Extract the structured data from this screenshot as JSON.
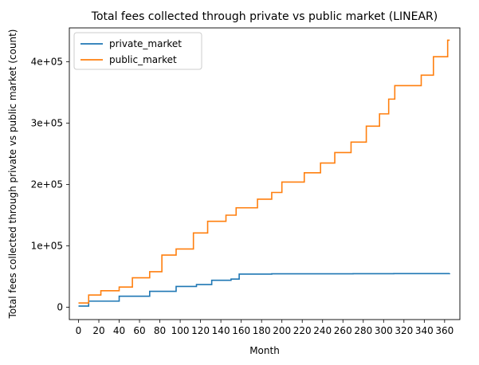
{
  "chart_data": {
    "type": "line",
    "step": true,
    "title": "Total fees collected through private vs public market (LINEAR)",
    "xlabel": "Month",
    "ylabel": "Total fees collected through private vs public market (count)",
    "xlim": [
      -9,
      375
    ],
    "ylim": [
      -20000,
      455000
    ],
    "x_ticks": [
      0,
      20,
      40,
      60,
      80,
      100,
      120,
      140,
      160,
      180,
      200,
      220,
      240,
      260,
      280,
      300,
      320,
      340,
      360
    ],
    "x_tick_labels": [
      "0",
      "20",
      "40",
      "60",
      "80",
      "100",
      "120",
      "140",
      "160",
      "180",
      "200",
      "220",
      "240",
      "260",
      "280",
      "300",
      "320",
      "340",
      "360"
    ],
    "y_ticks": [
      0,
      100000,
      200000,
      300000,
      400000
    ],
    "y_tick_labels": [
      "0",
      "1e+05",
      "2e+05",
      "3e+05",
      "4e+05"
    ],
    "legend_position": "top-left",
    "grid": false,
    "series": [
      {
        "name": "private_market",
        "color": "#1f77b4",
        "x": [
          0,
          10,
          40,
          70,
          96,
          116,
          131,
          150,
          158,
          190,
          230,
          270,
          310,
          365
        ],
        "y": [
          2000,
          10000,
          18000,
          26000,
          34000,
          37000,
          44000,
          46000,
          54000,
          54500,
          54600,
          54700,
          54800,
          54900
        ]
      },
      {
        "name": "public_market",
        "color": "#ff7f0e",
        "x": [
          0,
          10,
          22,
          40,
          53,
          70,
          82,
          96,
          113,
          127,
          145,
          155,
          176,
          190,
          200,
          222,
          238,
          252,
          268,
          283,
          296,
          305,
          311,
          337,
          349,
          363,
          365
        ],
        "y": [
          7000,
          20000,
          27000,
          33000,
          48000,
          58000,
          85000,
          95000,
          121000,
          140000,
          150000,
          162000,
          176000,
          187000,
          204000,
          219000,
          235000,
          252000,
          269000,
          295000,
          315000,
          339000,
          361000,
          378000,
          408000,
          435000,
          435000
        ]
      }
    ]
  }
}
